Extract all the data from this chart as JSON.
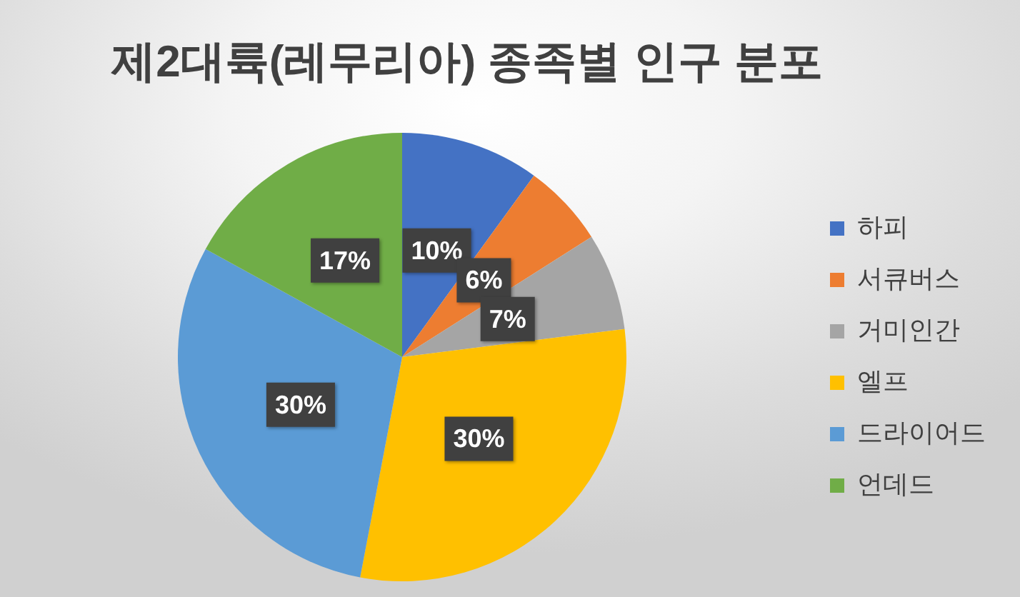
{
  "chart_data": {
    "type": "pie",
    "title": "제2대륙(레무리아) 종족별 인구 분포",
    "categories": [
      "하피",
      "서큐버스",
      "거미인간",
      "엘프",
      "드라이어드",
      "언데드"
    ],
    "values": [
      10,
      6,
      7,
      30,
      30,
      17
    ],
    "colors": [
      "#4472c4",
      "#ed7d31",
      "#a5a5a5",
      "#ffc000",
      "#5b9bd5",
      "#70ad47"
    ],
    "value_labels": [
      "10%",
      "6%",
      "7%",
      "30%",
      "30%",
      "17%"
    ],
    "legend": "right"
  }
}
